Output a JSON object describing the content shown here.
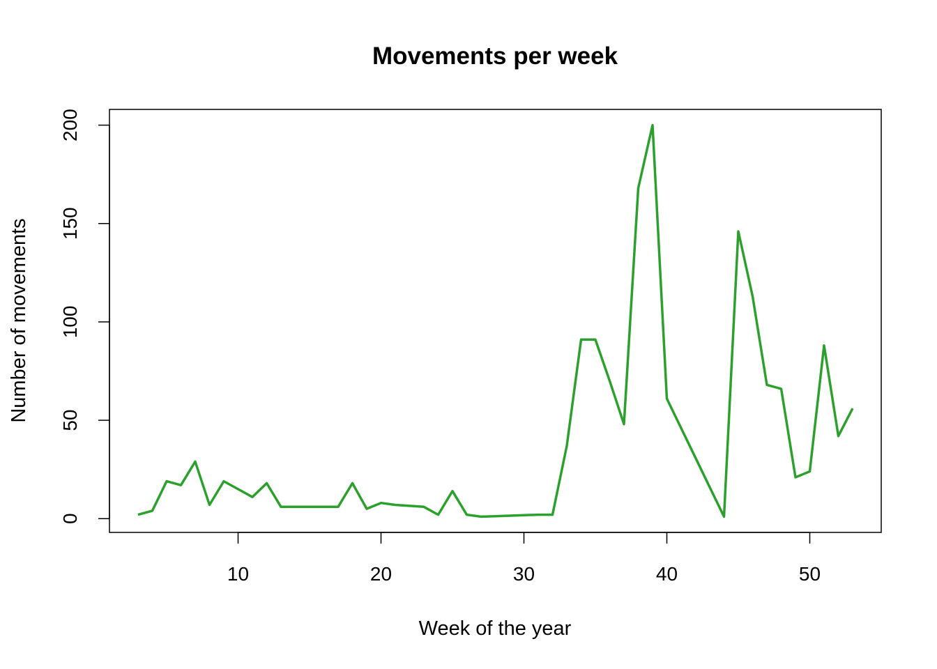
{
  "chart_data": {
    "type": "line",
    "title": "Movements per week",
    "xlabel": "Week of the year",
    "ylabel": "Number of movements",
    "xlim": [
      1,
      55
    ],
    "ylim": [
      -7,
      208
    ],
    "x_ticks": [
      10,
      20,
      30,
      40,
      50
    ],
    "y_ticks": [
      0,
      50,
      100,
      150,
      200
    ],
    "line_color": "#2ca02c",
    "grid": false,
    "series": [
      {
        "x": [
          3,
          4,
          5,
          6,
          7,
          8,
          9,
          10,
          11,
          12,
          13,
          14,
          15,
          16,
          17,
          18,
          19,
          20,
          21,
          22,
          23,
          24,
          25,
          26,
          27,
          28,
          29,
          30,
          31,
          32,
          33,
          34,
          35,
          36,
          37,
          38,
          39,
          40,
          41,
          42,
          43,
          44,
          45,
          46,
          47,
          48,
          49,
          50,
          51,
          52,
          53
        ],
        "values": [
          2,
          4,
          19,
          17,
          29,
          7,
          19,
          15,
          11,
          18,
          6,
          6,
          6,
          6,
          6,
          18,
          5,
          8,
          7,
          6.5,
          6,
          2,
          14,
          2,
          1,
          1.25,
          1.5,
          1.75,
          2,
          2,
          37,
          91,
          91,
          70,
          48,
          168,
          200,
          61,
          46,
          31,
          16,
          1,
          146,
          113,
          68,
          66,
          21,
          24,
          88,
          42,
          56
        ]
      }
    ]
  }
}
